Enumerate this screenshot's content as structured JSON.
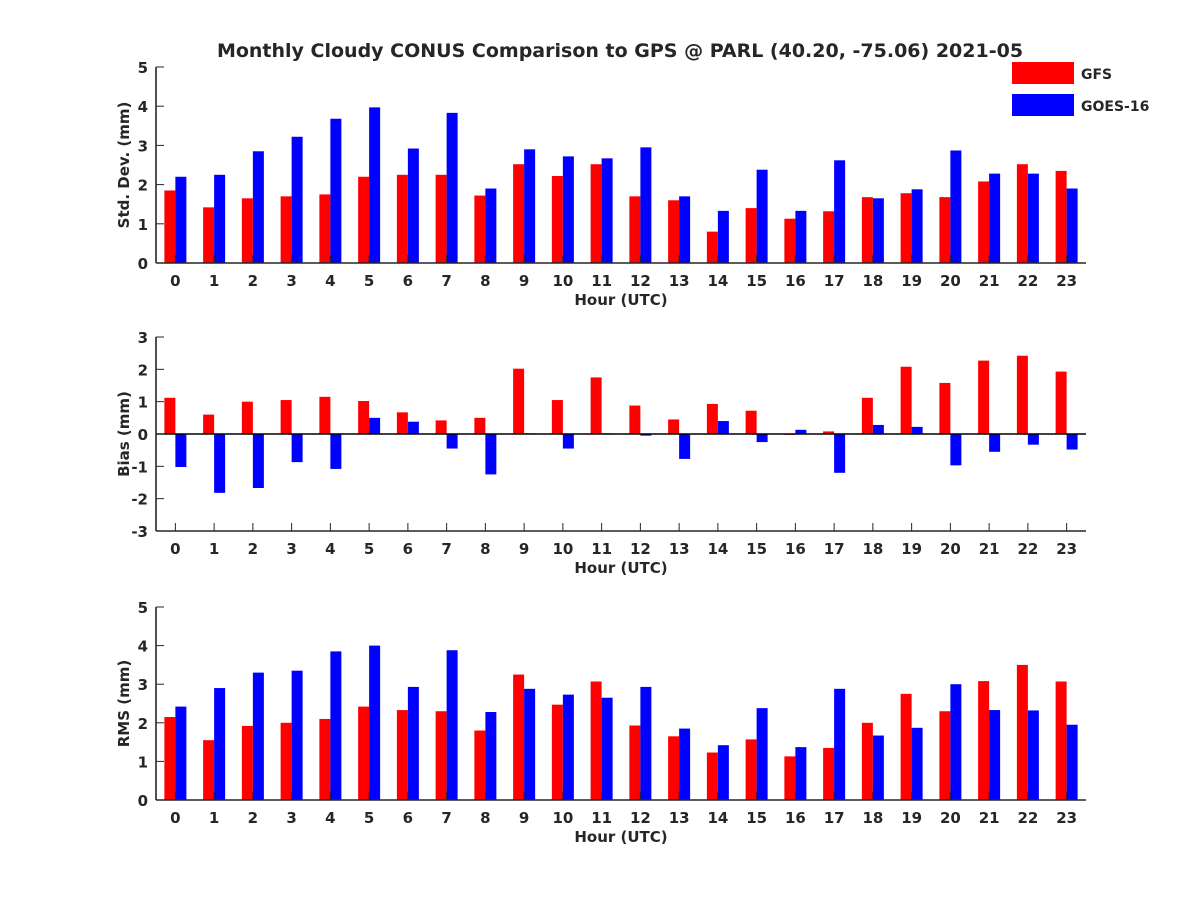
{
  "title": "Monthly Cloudy CONUS Comparison to GPS @ PARL (40.20, -75.06) 2021-05",
  "legend": [
    {
      "name": "GFS",
      "color": "#ff0000"
    },
    {
      "name": "GOES-16",
      "color": "#0000ff"
    }
  ],
  "chart_data": [
    {
      "type": "bar",
      "xlabel": "Hour (UTC)",
      "ylabel": "Std. Dev. (mm)",
      "ylim": [
        0,
        5
      ],
      "yticks": [
        0,
        1,
        2,
        3,
        4,
        5
      ],
      "categories": [
        "0",
        "1",
        "2",
        "3",
        "4",
        "5",
        "6",
        "7",
        "8",
        "9",
        "10",
        "11",
        "12",
        "13",
        "14",
        "15",
        "16",
        "17",
        "18",
        "19",
        "20",
        "21",
        "22",
        "23"
      ],
      "legend_position": "top-right",
      "series": [
        {
          "name": "GFS",
          "color": "#ff0000",
          "values": [
            1.85,
            1.42,
            1.65,
            1.7,
            1.75,
            2.2,
            2.25,
            2.25,
            1.72,
            2.52,
            2.22,
            2.52,
            1.7,
            1.6,
            0.8,
            1.4,
            1.13,
            1.32,
            1.68,
            1.78,
            1.68,
            2.08,
            2.52,
            2.35
          ]
        },
        {
          "name": "GOES-16",
          "color": "#0000ff",
          "values": [
            2.2,
            2.25,
            2.85,
            3.22,
            3.68,
            3.97,
            2.92,
            3.83,
            1.9,
            2.9,
            2.72,
            2.67,
            2.95,
            1.7,
            1.33,
            2.38,
            1.33,
            2.62,
            1.65,
            1.88,
            2.87,
            2.28,
            2.28,
            1.9
          ]
        }
      ]
    },
    {
      "type": "bar",
      "xlabel": "Hour (UTC)",
      "ylabel": "Bias (mm)",
      "ylim": [
        -3,
        3
      ],
      "yticks": [
        -3,
        -2,
        -1,
        0,
        1,
        2,
        3
      ],
      "categories": [
        "0",
        "1",
        "2",
        "3",
        "4",
        "5",
        "6",
        "7",
        "8",
        "9",
        "10",
        "11",
        "12",
        "13",
        "14",
        "15",
        "16",
        "17",
        "18",
        "19",
        "20",
        "21",
        "22",
        "23"
      ],
      "zero_line": true,
      "series": [
        {
          "name": "GFS",
          "color": "#ff0000",
          "values": [
            1.12,
            0.6,
            1.0,
            1.05,
            1.15,
            1.02,
            0.67,
            0.42,
            0.5,
            2.02,
            1.05,
            1.75,
            0.88,
            0.45,
            0.93,
            0.72,
            0.0,
            0.08,
            1.12,
            2.08,
            1.58,
            2.27,
            2.42,
            1.93
          ]
        },
        {
          "name": "GOES-16",
          "color": "#0000ff",
          "values": [
            -1.02,
            -1.82,
            -1.67,
            -0.87,
            -1.08,
            0.5,
            0.38,
            -0.45,
            -1.25,
            0.02,
            -0.45,
            0.02,
            -0.05,
            -0.77,
            0.4,
            -0.25,
            0.13,
            -1.2,
            0.28,
            0.22,
            -0.97,
            -0.55,
            -0.33,
            -0.48
          ]
        }
      ]
    },
    {
      "type": "bar",
      "xlabel": "Hour (UTC)",
      "ylabel": "RMS (mm)",
      "ylim": [
        0,
        5
      ],
      "yticks": [
        0,
        1,
        2,
        3,
        4,
        5
      ],
      "categories": [
        "0",
        "1",
        "2",
        "3",
        "4",
        "5",
        "6",
        "7",
        "8",
        "9",
        "10",
        "11",
        "12",
        "13",
        "14",
        "15",
        "16",
        "17",
        "18",
        "19",
        "20",
        "21",
        "22",
        "23"
      ],
      "series": [
        {
          "name": "GFS",
          "color": "#ff0000",
          "values": [
            2.15,
            1.55,
            1.92,
            2.0,
            2.1,
            2.42,
            2.33,
            2.3,
            1.8,
            3.25,
            2.47,
            3.07,
            1.93,
            1.65,
            1.23,
            1.57,
            1.13,
            1.35,
            2.0,
            2.75,
            2.3,
            3.08,
            3.5,
            3.07
          ]
        },
        {
          "name": "GOES-16",
          "color": "#0000ff",
          "values": [
            2.42,
            2.9,
            3.3,
            3.35,
            3.85,
            4.0,
            2.93,
            3.88,
            2.28,
            2.88,
            2.73,
            2.65,
            2.93,
            1.85,
            1.42,
            2.38,
            1.37,
            2.88,
            1.67,
            1.87,
            3.0,
            2.33,
            2.32,
            1.95
          ]
        }
      ]
    }
  ]
}
